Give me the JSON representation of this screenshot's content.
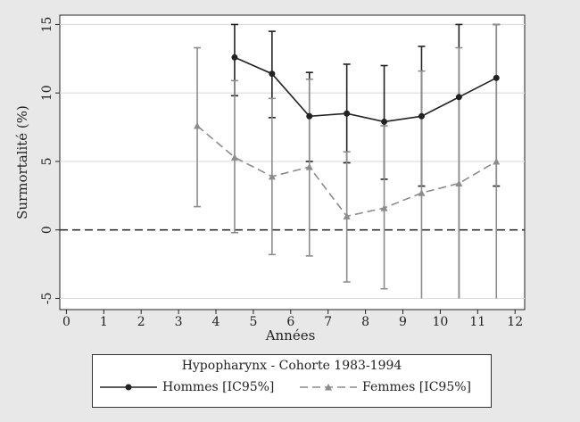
{
  "chart_data": {
    "type": "line",
    "title": "",
    "xlabel": "Années",
    "ylabel": "Surmortalité (%)",
    "xlim": [
      -0.2,
      12.3
    ],
    "ylim": [
      -6.0,
      15.7
    ],
    "xticks": [
      0,
      1,
      2,
      3,
      4,
      5,
      6,
      7,
      8,
      9,
      10,
      11,
      12
    ],
    "yticks": [
      -5,
      0,
      5,
      10,
      15
    ],
    "grid": "horizontal",
    "reference_line": 0,
    "legend": {
      "title": "Hypopharynx - Cohorte 1983-1994",
      "placement": "bottom",
      "entries": [
        "Hommes [IC95%]",
        "Femmes [IC95%]"
      ]
    },
    "series": [
      {
        "name": "Hommes [IC95%]",
        "color": "#222222",
        "style": "solid",
        "marker": "circle",
        "x": [
          4.5,
          5.5,
          6.5,
          7.5,
          8.5,
          9.5,
          10.5,
          11.5
        ],
        "y": [
          12.6,
          11.4,
          8.3,
          8.5,
          7.9,
          8.3,
          9.7,
          11.1
        ],
        "ci_low": [
          9.8,
          8.2,
          5.0,
          4.9,
          3.7,
          3.2,
          -5.0,
          3.2
        ],
        "ci_high": [
          15.0,
          14.5,
          11.5,
          12.1,
          12.0,
          13.4,
          15.0,
          15.0
        ]
      },
      {
        "name": "Femmes [IC95%]",
        "color": "#8c8c8c",
        "style": "dashed",
        "marker": "triangle",
        "x": [
          3.5,
          4.5,
          5.5,
          6.5,
          7.5,
          8.5,
          9.5,
          10.5,
          11.5
        ],
        "y": [
          7.6,
          5.3,
          3.9,
          4.6,
          1.0,
          1.6,
          2.7,
          3.4,
          5.0
        ],
        "ci_low": [
          1.7,
          -0.2,
          -1.8,
          -1.9,
          -3.8,
          -4.3,
          -5.0,
          -5.0,
          -5.0
        ],
        "ci_high": [
          13.3,
          10.9,
          9.6,
          11.0,
          5.7,
          7.6,
          11.6,
          13.3,
          15.0
        ]
      }
    ]
  }
}
